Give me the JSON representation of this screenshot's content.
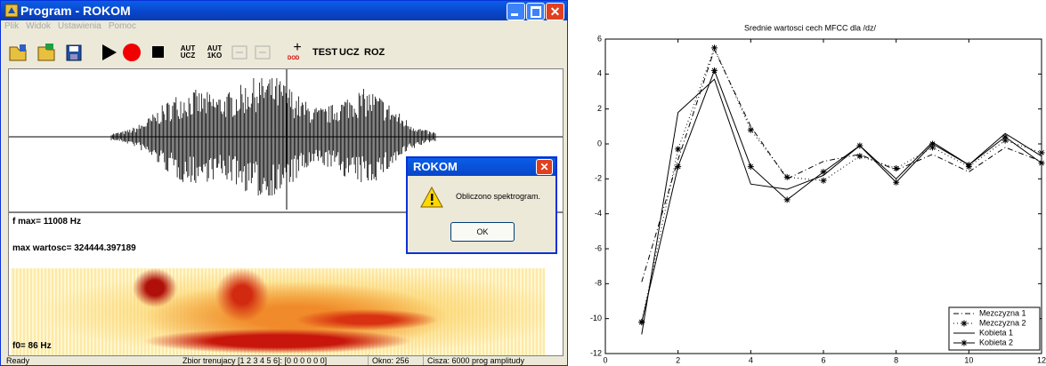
{
  "window": {
    "title": "Program - ROKOM",
    "menu": [
      "Plik",
      "Widok",
      "Ustawienia",
      "Pomoc"
    ],
    "toolbar": [
      {
        "top": "AUT",
        "bottom": "UCZ"
      },
      {
        "top": "AUT",
        "bottom": "1KO"
      }
    ],
    "dod": "DOD",
    "text_buttons": [
      "TEST",
      "UCZ",
      "ROZ"
    ],
    "info": {
      "fmax": "f max= 11008 Hz",
      "max": "max wartosc= 324444.397189",
      "f0": "f0= 86 Hz"
    },
    "dialog": {
      "title": "ROKOM",
      "message": "Obliczono spektrogram.",
      "button": "OK"
    },
    "status": [
      "Ready",
      "Zbior trenujacy [1 2 3 4 5 6]: [0 0 0 0 0 0]",
      "Okno: 256",
      "Cisza: 6000 prog amplitudy"
    ]
  },
  "chart_data": {
    "type": "line",
    "title": "Srednie wartosci cech MFCC dla /dz/",
    "x": [
      1,
      2,
      3,
      4,
      5,
      6,
      7,
      8,
      9,
      10,
      11,
      12
    ],
    "series": [
      {
        "name": "Mezczyzna 1",
        "color": "#000000",
        "style": "dashdot",
        "values": [
          -7.9,
          -0.9,
          5.4,
          1.0,
          -2.0,
          -1.0,
          -0.6,
          -1.5,
          -0.6,
          -1.6,
          -0.2,
          -1.0
        ]
      },
      {
        "name": "Mezczyzna 2",
        "color": "#000000",
        "style": "dotted",
        "marker": "star",
        "values": [
          -10.2,
          -0.3,
          5.5,
          0.8,
          -1.9,
          -2.1,
          -0.7,
          -1.4,
          -0.2,
          -1.3,
          0.2,
          -0.5
        ]
      },
      {
        "name": "Kobieta 1",
        "color": "#000000",
        "style": "solid",
        "values": [
          -10.9,
          1.8,
          3.7,
          -2.3,
          -2.6,
          -1.8,
          -0.1,
          -2.0,
          0.1,
          -1.2,
          0.6,
          -0.7
        ]
      },
      {
        "name": "Kobieta 2",
        "color": "#000000",
        "style": "solid",
        "marker": "star",
        "values": [
          -10.2,
          -1.3,
          4.2,
          -1.3,
          -3.2,
          -1.6,
          -0.1,
          -2.2,
          0.0,
          -1.2,
          0.4,
          -1.1
        ]
      }
    ],
    "xlim": [
      0,
      12
    ],
    "xticks": [
      0,
      2,
      4,
      6,
      8,
      10,
      12
    ],
    "ylim": [
      -12,
      6
    ],
    "yticks": [
      -12,
      -10,
      -8,
      -6,
      -4,
      -2,
      0,
      2,
      4,
      6
    ],
    "legend": "lower right"
  }
}
